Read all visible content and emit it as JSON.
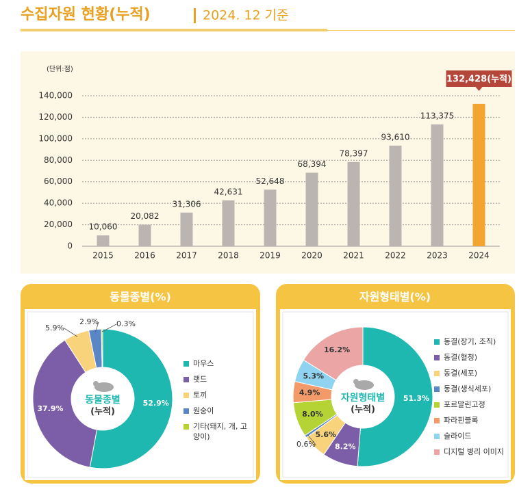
{
  "header": {
    "title": "수집자원 현황(누적)",
    "date": "2024. 12 기준"
  },
  "chart_data": [
    {
      "type": "bar",
      "unit": "(단위:점)",
      "categories": [
        "2015",
        "2016",
        "2017",
        "2018",
        "2019",
        "2020",
        "2021",
        "2022",
        "2023",
        "2024"
      ],
      "values": [
        10060,
        20082,
        31306,
        42631,
        52648,
        68394,
        78397,
        93610,
        113375,
        132428
      ],
      "value_labels": [
        "10,060",
        "20,082",
        "31,306",
        "42,631",
        "52,648",
        "68,394",
        "78,397",
        "93,610",
        "113,375",
        "132,428(누적)"
      ],
      "colors": [
        "#bab5b1",
        "#bab5b1",
        "#bab5b1",
        "#bab5b1",
        "#bab5b1",
        "#bab5b1",
        "#bab5b1",
        "#bab5b1",
        "#bab5b1",
        "#f2a531"
      ],
      "ylim": [
        0,
        140000
      ],
      "yticks": [
        0,
        {
          "value": 20000,
          "label": "20,000"
        },
        {
          "value": 40000,
          "label": "40,000"
        },
        {
          "value": 60000,
          "label": "60,000"
        },
        {
          "value": 80000,
          "label": "80,000"
        },
        {
          "value": 100000,
          "label": "100,000"
        },
        {
          "value": 120000,
          "label": "120,000"
        },
        {
          "value": 140000,
          "label": "140,000"
        }
      ],
      "grid": true
    },
    {
      "type": "donut",
      "title": "동물종별(%)",
      "center_title": "동물종별",
      "center_subtitle": "(누적)",
      "categories": [
        "마우스",
        "랫드",
        "토끼",
        "원숭이",
        "기타(돼지, 개, 고양이)"
      ],
      "values": [
        52.9,
        37.9,
        5.9,
        2.9,
        0.3
      ],
      "value_labels": [
        "52.9%",
        "37.9%",
        "5.9%",
        "2.9%",
        "0.3%"
      ],
      "colors": [
        "#1fb8b0",
        "#7b5ea7",
        "#f9d27c",
        "#5b86c5",
        "#b5d334"
      ]
    },
    {
      "type": "donut",
      "title": "자원형태별(%)",
      "center_title": "자원형태별",
      "center_subtitle": "(누적)",
      "categories": [
        "동결(장기, 조직)",
        "동결(혈청)",
        "동결(세포)",
        "동결(생식세포)",
        "포르말린고정",
        "파라핀블록",
        "슬라이드",
        "디지털 병리 이미지"
      ],
      "values": [
        51.3,
        8.2,
        5.6,
        0.6,
        8.0,
        4.9,
        5.3,
        16.2
      ],
      "value_labels": [
        "51.3%",
        "8.2%",
        "5.6%",
        "0.6%",
        "8.0%",
        "4.9%",
        "5.3%",
        "16.2%"
      ],
      "colors": [
        "#1fb8b0",
        "#7b5ea7",
        "#f9d27c",
        "#5b86c5",
        "#b5d334",
        "#f39a6a",
        "#8fd3f0",
        "#eba5a5"
      ]
    }
  ]
}
